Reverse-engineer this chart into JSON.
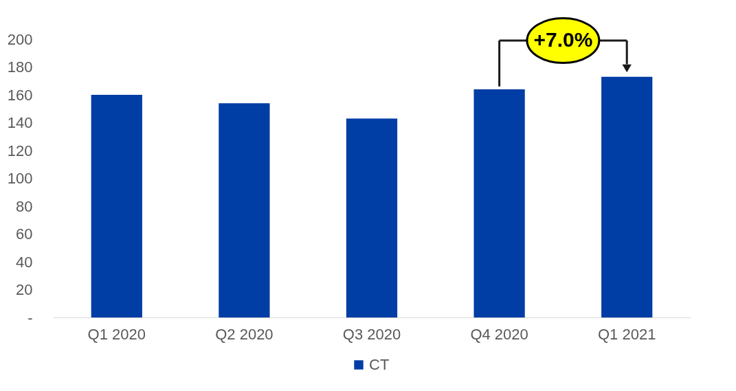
{
  "chart_data": {
    "type": "bar",
    "categories": [
      "Q1 2020",
      "Q2 2020",
      "Q3 2020",
      "Q4 2020",
      "Q1 2021"
    ],
    "series": [
      {
        "name": "CT",
        "color": "#003da5",
        "values": [
          160,
          154,
          143,
          164,
          173
        ]
      }
    ],
    "ylim": [
      0,
      200
    ],
    "yticks": [
      {
        "value": 0,
        "label": "-"
      },
      20,
      40,
      60,
      80,
      100,
      120,
      140,
      160,
      180,
      200
    ],
    "grid": false,
    "legend": "bottom",
    "annotations": [
      "+7.0%"
    ]
  }
}
